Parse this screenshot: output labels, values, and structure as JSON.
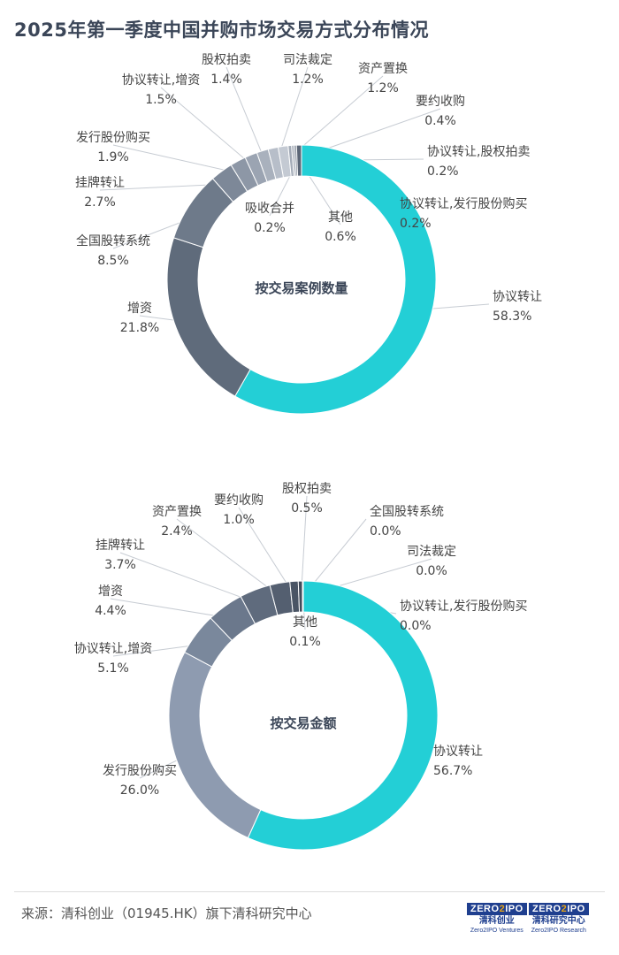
{
  "title": "2025年第一季度中国并购市场交易方式分布情况",
  "chart_data": [
    {
      "type": "pie",
      "title": "按交易案例数量",
      "slices": [
        {
          "label": "协议转让",
          "value": 58.3,
          "display": "58.3%",
          "color": "#23cfd6"
        },
        {
          "label": "增资",
          "value": 21.8,
          "display": "21.8%",
          "color": "#5f6b7b"
        },
        {
          "label": "全国股转系统",
          "value": 8.5,
          "display": "8.5%",
          "color": "#6e7a8a"
        },
        {
          "label": "挂牌转让",
          "value": 2.7,
          "display": "2.7%",
          "color": "#7d8898"
        },
        {
          "label": "发行股份购买",
          "value": 1.9,
          "display": "1.9%",
          "color": "#8d97a6"
        },
        {
          "label": "协议转让,增资",
          "value": 1.5,
          "display": "1.5%",
          "color": "#9ba4b2"
        },
        {
          "label": "股权拍卖",
          "value": 1.4,
          "display": "1.4%",
          "color": "#a9b1bd"
        },
        {
          "label": "司法裁定",
          "value": 1.2,
          "display": "1.2%",
          "color": "#b7bec9"
        },
        {
          "label": "资产置换",
          "value": 1.2,
          "display": "1.2%",
          "color": "#c4cad3"
        },
        {
          "label": "要约收购",
          "value": 0.4,
          "display": "0.4%",
          "color": "#a3abb7"
        },
        {
          "label": "协议转让,股权拍卖",
          "value": 0.2,
          "display": "0.2%",
          "color": "#8f99a7"
        },
        {
          "label": "协议转让,发行股份购买",
          "value": 0.2,
          "display": "0.2%",
          "color": "#7b8696"
        },
        {
          "label": "吸收合并",
          "value": 0.2,
          "display": "0.2%",
          "color": "#6b7686"
        },
        {
          "label": "其他",
          "value": 0.6,
          "display": "0.6%",
          "color": "#5c6777"
        }
      ]
    },
    {
      "type": "pie",
      "title": "按交易金额",
      "slices": [
        {
          "label": "协议转让",
          "value": 56.7,
          "display": "56.7%",
          "color": "#23cfd6"
        },
        {
          "label": "发行股份购买",
          "value": 26.0,
          "display": "26.0%",
          "color": "#8e9bb0"
        },
        {
          "label": "协议转让,增资",
          "value": 5.1,
          "display": "5.1%",
          "color": "#7a889c"
        },
        {
          "label": "增资",
          "value": 4.4,
          "display": "4.4%",
          "color": "#6b788c"
        },
        {
          "label": "挂牌转让",
          "value": 3.7,
          "display": "3.7%",
          "color": "#5f6b7d"
        },
        {
          "label": "资产置换",
          "value": 2.4,
          "display": "2.4%",
          "color": "#545f70"
        },
        {
          "label": "要约收购",
          "value": 1.0,
          "display": "1.0%",
          "color": "#4a5565"
        },
        {
          "label": "股权拍卖",
          "value": 0.5,
          "display": "0.5%",
          "color": "#414b5a"
        },
        {
          "label": "全国股转系统",
          "value": 0.0,
          "display": "0.0%",
          "color": "#3b4554"
        },
        {
          "label": "司法裁定",
          "value": 0.0,
          "display": "0.0%",
          "color": "#3b4554"
        },
        {
          "label": "协议转让,发行股份购买",
          "value": 0.0,
          "display": "0.0%",
          "color": "#3b4554"
        },
        {
          "label": "其他",
          "value": 0.1,
          "display": "0.1%",
          "color": "#36404e"
        }
      ]
    }
  ],
  "footer": {
    "source": "来源：清科创业（01945.HK）旗下清科研究中心",
    "logo_ventures": {
      "mark_left": "ZERO",
      "mark_mid": "2",
      "mark_right": "IPO",
      "cn": "清科创业",
      "en": "Zero2IPO Ventures"
    },
    "logo_research": {
      "mark_left": "ZERO",
      "mark_mid": "2",
      "mark_right": "IPO",
      "cn": "清科研究中心",
      "en": "Zero2IPO Research"
    }
  }
}
